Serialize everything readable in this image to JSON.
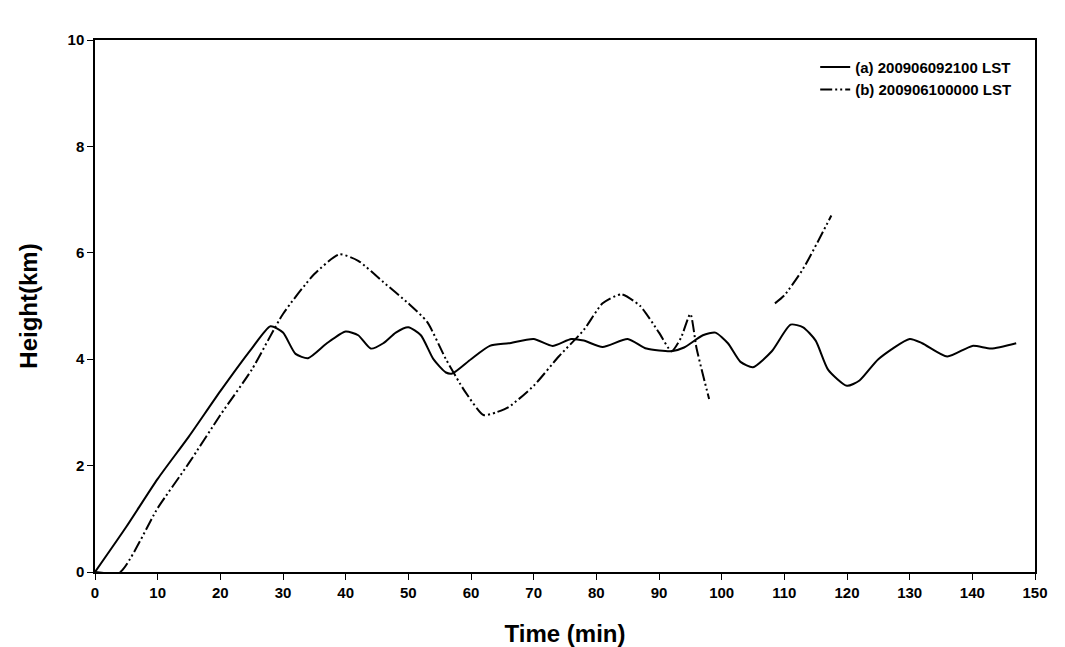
{
  "chart_data": {
    "type": "line",
    "x_label": "Time (min)",
    "y_label": "Height(km)",
    "xlim": [
      0,
      150
    ],
    "xticks": [
      0,
      10,
      20,
      30,
      40,
      50,
      60,
      70,
      80,
      90,
      100,
      110,
      120,
      130,
      140,
      150
    ],
    "ylim": [
      0,
      10
    ],
    "yticks": [
      0,
      2,
      4,
      6,
      8,
      10
    ],
    "grid": false,
    "legend": "upper right",
    "series": [
      {
        "name": "(a) 200906092100 LST",
        "color": "#000000",
        "line_style": "solid",
        "x": [
          0,
          5,
          10,
          15,
          20,
          25,
          28,
          30,
          32,
          34,
          37,
          40,
          42,
          44,
          46,
          48,
          50,
          52,
          54,
          56,
          57,
          60,
          63,
          66,
          70,
          73,
          76,
          78,
          81,
          85,
          88,
          92,
          94,
          97,
          99,
          101,
          103,
          105,
          108,
          111,
          113,
          115,
          117,
          120,
          122,
          125,
          130,
          132,
          136,
          140,
          143,
          147
        ],
        "values": [
          0,
          0.85,
          1.75,
          2.55,
          3.4,
          4.2,
          4.62,
          4.5,
          4.1,
          4.02,
          4.3,
          4.52,
          4.45,
          4.2,
          4.3,
          4.5,
          4.6,
          4.45,
          4.0,
          3.75,
          3.73,
          4.0,
          4.25,
          4.3,
          4.38,
          4.25,
          4.38,
          4.35,
          4.23,
          4.38,
          4.2,
          4.15,
          4.22,
          4.45,
          4.5,
          4.3,
          3.95,
          3.85,
          4.15,
          4.65,
          4.6,
          4.35,
          3.8,
          3.5,
          3.6,
          4.0,
          4.38,
          4.3,
          4.05,
          4.25,
          4.2,
          4.3
        ]
      },
      {
        "name": "(b) 200906100000 LST",
        "color": "#000000",
        "line_style": "dashdotdot",
        "x": [
          0,
          4,
          10,
          15,
          20,
          25,
          30,
          35,
          39,
          42,
          46,
          50,
          53,
          56,
          59,
          62,
          64,
          66,
          70,
          74,
          78,
          81,
          84,
          87,
          90,
          92,
          93.5,
          95,
          96,
          98,
          103,
          108.5,
          110,
          113,
          117.5
        ],
        "values": [
          0,
          0,
          1.2,
          2.05,
          2.95,
          3.8,
          4.85,
          5.6,
          5.97,
          5.85,
          5.45,
          5.05,
          4.7,
          4.0,
          3.4,
          2.95,
          3.0,
          3.1,
          3.5,
          4.05,
          4.55,
          5.05,
          5.22,
          5.0,
          4.5,
          4.15,
          4.4,
          4.85,
          4.2,
          3.25,
          null,
          5.05,
          5.2,
          5.7,
          6.7
        ]
      }
    ]
  }
}
